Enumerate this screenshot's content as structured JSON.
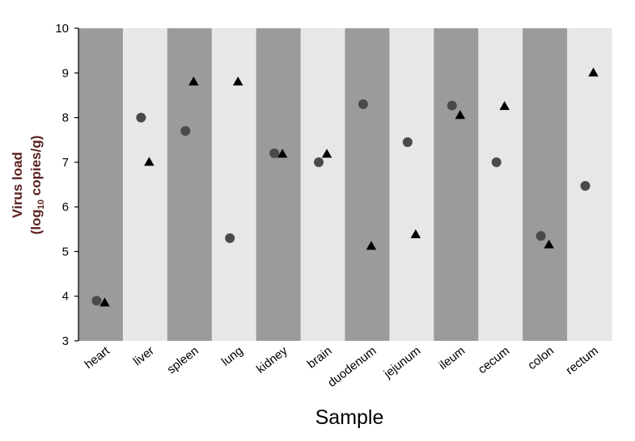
{
  "chart_data": {
    "type": "scatter",
    "title": "",
    "xlabel": "Sample",
    "ylabel": "Virus load",
    "ylabel_line2": {
      "prefix": "(log",
      "subscript": "10",
      "suffix": " copies/g)"
    },
    "ylim": [
      3,
      10
    ],
    "yticks": [
      "3",
      "4",
      "5",
      "6",
      "7",
      "8",
      "9",
      "10"
    ],
    "categories": [
      "heart",
      "liver",
      "spleen",
      "lung",
      "kidney",
      "brain",
      "duodenum",
      "jejunum",
      "ileum",
      "cecum",
      "colon",
      "rectum"
    ],
    "band_colors": [
      "#9a9c9c",
      "#e6e7e7"
    ],
    "series": [
      {
        "marker": "circle",
        "color": "#4a4a4a",
        "values": [
          3.9,
          8.0,
          7.7,
          5.3,
          7.2,
          7.0,
          8.3,
          7.45,
          8.27,
          7.0,
          5.35,
          6.47
        ]
      },
      {
        "marker": "triangle",
        "color": "#000000",
        "values": [
          3.85,
          7.0,
          8.8,
          8.8,
          7.18,
          7.18,
          5.12,
          5.38,
          8.05,
          8.25,
          5.15,
          9.0
        ]
      }
    ]
  }
}
